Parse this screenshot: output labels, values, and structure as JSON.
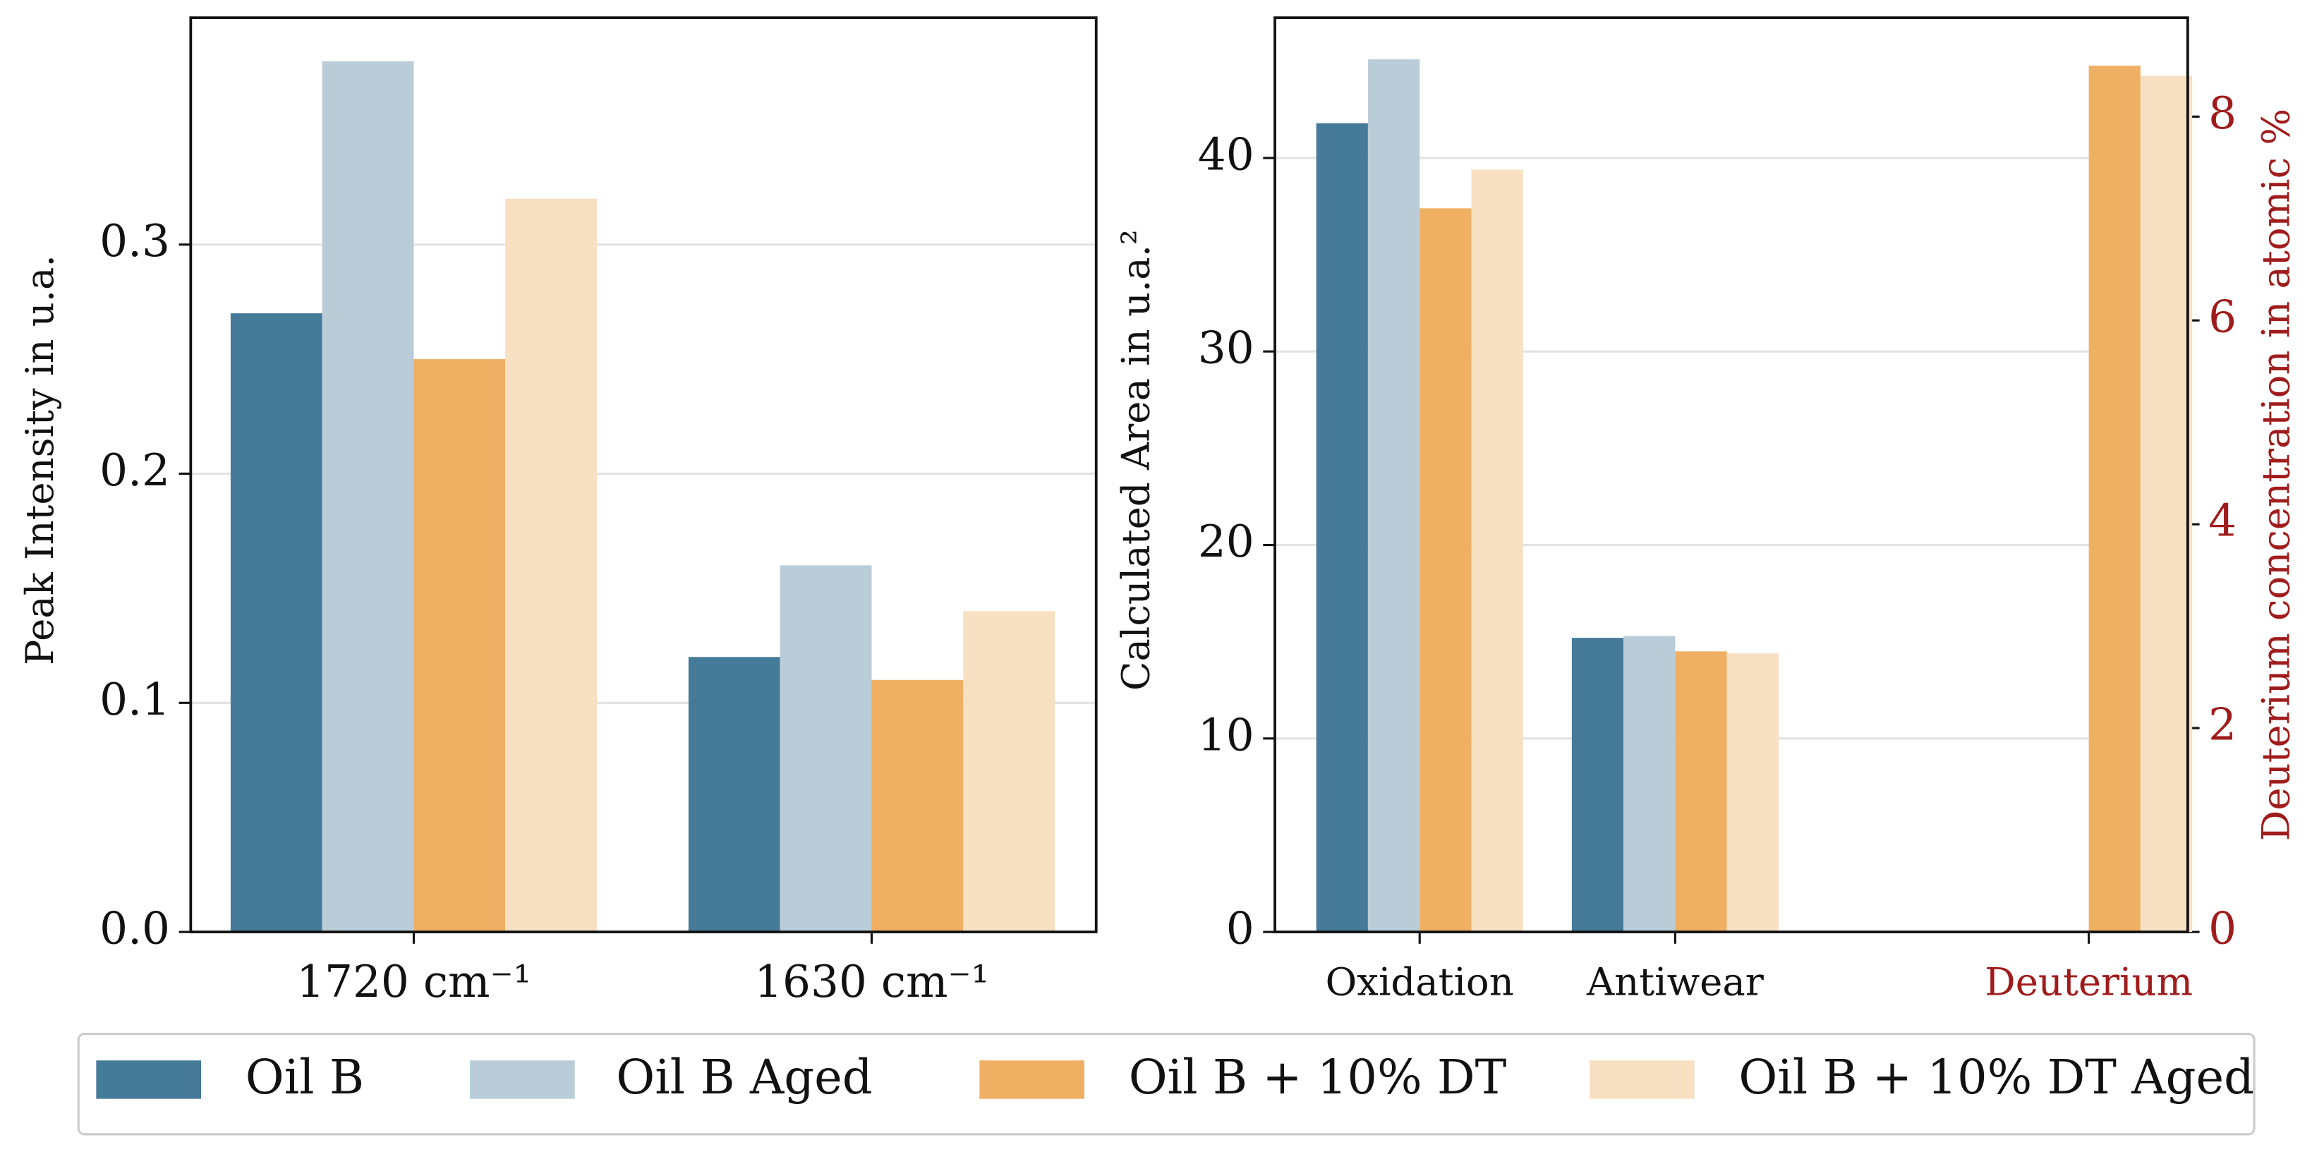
{
  "chart_data": [
    {
      "type": "bar",
      "ylabel": "Peak Intensity in u.a.",
      "categories": [
        "1720 cm⁻¹",
        "1630 cm⁻¹"
      ],
      "series": [
        {
          "name": "Oil B",
          "color": "#457b98",
          "values": [
            0.27,
            0.12
          ]
        },
        {
          "name": "Oil B Aged",
          "color": "#b9ccd8",
          "values": [
            0.38,
            0.16
          ]
        },
        {
          "name": "Oil B + 10% DT",
          "color": "#f0b064",
          "values": [
            0.25,
            0.11
          ]
        },
        {
          "name": "Oil B + 10% DT Aged",
          "color": "#f8e0c2",
          "values": [
            0.32,
            0.14
          ]
        }
      ],
      "ylim": [
        0,
        0.399
      ],
      "yticks": [
        {
          "value": 0,
          "label": "0.0"
        },
        0.1,
        0.2,
        0.3
      ],
      "grid": true
    },
    {
      "type": "bar",
      "ylabel": "Calculated Area in u.a.²",
      "y2label": "Deuterium concentration in atomic %",
      "categories": [
        "Oxidation",
        "Antiwear",
        "Deuterium"
      ],
      "series": [
        {
          "values": [
            41.8,
            15.2,
            null
          ]
        },
        {
          "values": [
            45.1,
            15.3,
            null
          ]
        },
        {
          "values": [
            37.4,
            14.5,
            null
          ],
          "y2_values": [
            null,
            null,
            8.5
          ]
        },
        {
          "values": [
            39.4,
            14.4,
            null
          ],
          "y2_values": [
            null,
            null,
            8.4
          ]
        }
      ],
      "ylim": [
        0,
        47.25
      ],
      "yticks": [
        0,
        10,
        20,
        30,
        40
      ],
      "y2lim": [
        0,
        8.97
      ],
      "y2ticks": [
        0,
        2,
        4,
        6,
        8
      ],
      "y2_color": "#a01c1c",
      "grid": true
    }
  ]
}
